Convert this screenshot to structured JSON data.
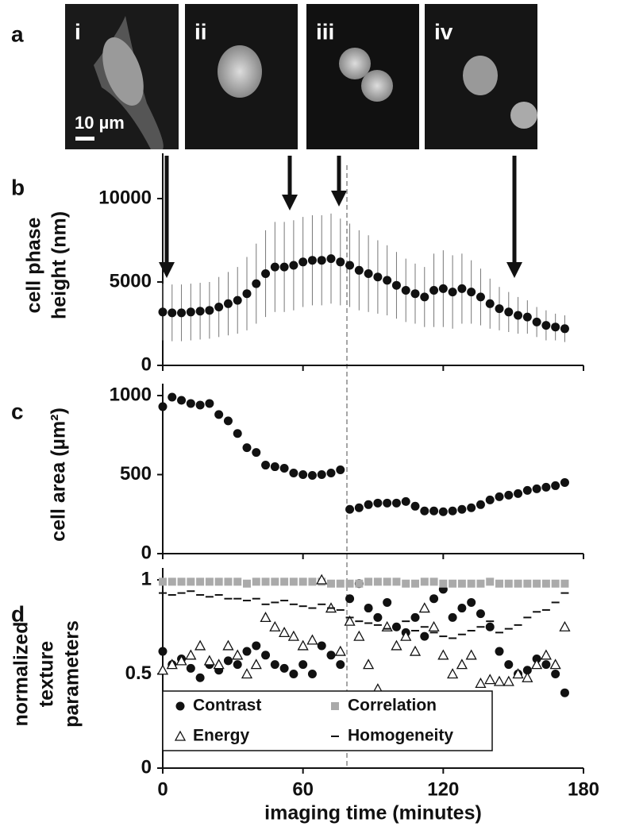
{
  "images": {
    "labels": [
      "i",
      "ii",
      "iii",
      "iv"
    ],
    "scale_bar": "10 µm",
    "label": "a"
  },
  "chart_data": [
    {
      "type": "scatter",
      "label": "b",
      "ylabel": [
        "cell phase",
        "height (nm)"
      ],
      "x": [
        0,
        4,
        8,
        12,
        16,
        20,
        24,
        28,
        32,
        36,
        40,
        44,
        48,
        52,
        56,
        60,
        64,
        68,
        72,
        76,
        80,
        84,
        88,
        92,
        96,
        100,
        104,
        108,
        112,
        116,
        120,
        124,
        128,
        132,
        136,
        140,
        144,
        148,
        152,
        156,
        160,
        164,
        168,
        172
      ],
      "series": [
        {
          "marker": "circle",
          "color": "#111111",
          "error_color": "#777777",
          "values": [
            3200,
            3150,
            3150,
            3200,
            3250,
            3300,
            3500,
            3700,
            3900,
            4300,
            4900,
            5500,
            5900,
            5900,
            6000,
            6200,
            6300,
            6300,
            6400,
            6200,
            6000,
            5700,
            5500,
            5300,
            5100,
            4800,
            4500,
            4300,
            4100,
            4500,
            4600,
            4400,
            4600,
            4400,
            4100,
            3700,
            3400,
            3200,
            3000,
            2900,
            2600,
            2400,
            2300,
            2200
          ],
          "errors": [
            1700,
            1700,
            1700,
            1700,
            1700,
            1700,
            1800,
            1900,
            2000,
            2200,
            2400,
            2600,
            2700,
            2700,
            2700,
            2700,
            2700,
            2700,
            2700,
            2600,
            2500,
            2400,
            2300,
            2200,
            2100,
            2000,
            1900,
            1800,
            1800,
            2200,
            2300,
            2200,
            2100,
            1900,
            1700,
            1500,
            1300,
            1200,
            1100,
            1000,
            900,
            900,
            800,
            800
          ]
        }
      ],
      "xlim": [
        0,
        180
      ],
      "xticks": [
        0,
        60,
        120,
        180
      ],
      "show_xtick_labels": false,
      "ylim": [
        0,
        12000
      ],
      "yticks": [
        0,
        5000,
        10000
      ]
    },
    {
      "type": "scatter",
      "label": "c",
      "ylabel": [
        "cell area (µm²)"
      ],
      "x": [
        0,
        4,
        8,
        12,
        16,
        20,
        24,
        28,
        32,
        36,
        40,
        44,
        48,
        52,
        56,
        60,
        64,
        68,
        72,
        76,
        80,
        84,
        88,
        92,
        96,
        100,
        104,
        108,
        112,
        116,
        120,
        124,
        128,
        132,
        136,
        140,
        144,
        148,
        152,
        156,
        160,
        164,
        168,
        172
      ],
      "series": [
        {
          "marker": "circle",
          "color": "#111111",
          "values": [
            930,
            990,
            970,
            950,
            940,
            950,
            880,
            840,
            760,
            670,
            640,
            560,
            550,
            540,
            510,
            500,
            495,
            500,
            510,
            530,
            280,
            290,
            310,
            320,
            320,
            320,
            330,
            300,
            270,
            270,
            265,
            270,
            280,
            290,
            310,
            340,
            360,
            370,
            380,
            400,
            410,
            420,
            430,
            450
          ]
        }
      ],
      "xlim": [
        0,
        180
      ],
      "xticks": [
        0,
        60,
        120,
        180
      ],
      "show_xtick_labels": false,
      "ylim": [
        0,
        1000
      ],
      "yticks": [
        0,
        500,
        1000
      ]
    },
    {
      "type": "scatter",
      "label": "d",
      "ylabel": [
        "normalized",
        "texture",
        "parameters"
      ],
      "xlabel": "imaging time (minutes)",
      "x": [
        0,
        4,
        8,
        12,
        16,
        20,
        24,
        28,
        32,
        36,
        40,
        44,
        48,
        52,
        56,
        60,
        64,
        68,
        72,
        76,
        80,
        84,
        88,
        92,
        96,
        100,
        104,
        108,
        112,
        116,
        120,
        124,
        128,
        132,
        136,
        140,
        144,
        148,
        152,
        156,
        160,
        164,
        168,
        172
      ],
      "series": [
        {
          "name": "Contrast",
          "marker": "circle",
          "color": "#111111",
          "values": [
            0.62,
            0.55,
            0.58,
            0.53,
            0.48,
            0.55,
            0.52,
            0.57,
            0.55,
            0.62,
            0.65,
            0.6,
            0.55,
            0.53,
            0.5,
            0.55,
            0.5,
            0.65,
            0.6,
            0.55,
            0.9,
            0.98,
            0.85,
            0.8,
            0.88,
            0.75,
            0.72,
            0.8,
            0.7,
            0.9,
            0.95,
            0.8,
            0.85,
            0.88,
            0.82,
            0.75,
            0.62,
            0.55,
            0.5,
            0.52,
            0.58,
            0.55,
            0.5,
            0.4
          ]
        },
        {
          "name": "Correlation",
          "marker": "square",
          "color": "#aaaaaa",
          "values": [
            0.99,
            0.99,
            0.99,
            0.99,
            0.99,
            0.99,
            0.99,
            0.99,
            0.99,
            0.98,
            0.99,
            0.99,
            0.99,
            0.99,
            0.99,
            0.99,
            0.99,
            0.99,
            0.98,
            0.98,
            0.98,
            0.98,
            0.99,
            0.99,
            0.99,
            0.99,
            0.98,
            0.98,
            0.99,
            0.99,
            0.98,
            0.98,
            0.98,
            0.98,
            0.98,
            0.99,
            0.98,
            0.98,
            0.98,
            0.98,
            0.98,
            0.98,
            0.98,
            0.98
          ]
        },
        {
          "name": "Energy",
          "marker": "triangle",
          "color": "#111111",
          "values": [
            0.52,
            0.55,
            0.57,
            0.6,
            0.65,
            0.57,
            0.55,
            0.65,
            0.6,
            0.5,
            0.55,
            0.8,
            0.75,
            0.72,
            0.7,
            0.65,
            0.68,
            1,
            0.85,
            0.62,
            0.78,
            0.7,
            0.55,
            0.42,
            0.75,
            0.65,
            0.7,
            0.62,
            0.85,
            0.75,
            0.6,
            0.5,
            0.55,
            0.6,
            0.45,
            0.47,
            0.46,
            0.46,
            0.5,
            0.48,
            0.55,
            0.6,
            0.55,
            0.75
          ]
        },
        {
          "name": "Homogeneity",
          "marker": "dash",
          "color": "#111111",
          "values": [
            0.93,
            0.92,
            0.93,
            0.94,
            0.92,
            0.91,
            0.92,
            0.9,
            0.9,
            0.89,
            0.9,
            0.87,
            0.88,
            0.89,
            0.87,
            0.86,
            0.85,
            0.87,
            0.85,
            0.84,
            0.8,
            0.78,
            0.77,
            0.76,
            0.74,
            0.75,
            0.78,
            0.73,
            0.75,
            0.72,
            0.7,
            0.69,
            0.71,
            0.73,
            0.75,
            0.78,
            0.72,
            0.74,
            0.76,
            0.8,
            0.83,
            0.84,
            0.88,
            0.93
          ]
        }
      ],
      "xlim": [
        0,
        180
      ],
      "xticks": [
        0,
        60,
        120,
        180
      ],
      "show_xtick_labels": true,
      "ylim": [
        0,
        1
      ],
      "yticks": [
        0,
        0.5,
        1
      ],
      "legend": "lower left"
    }
  ]
}
